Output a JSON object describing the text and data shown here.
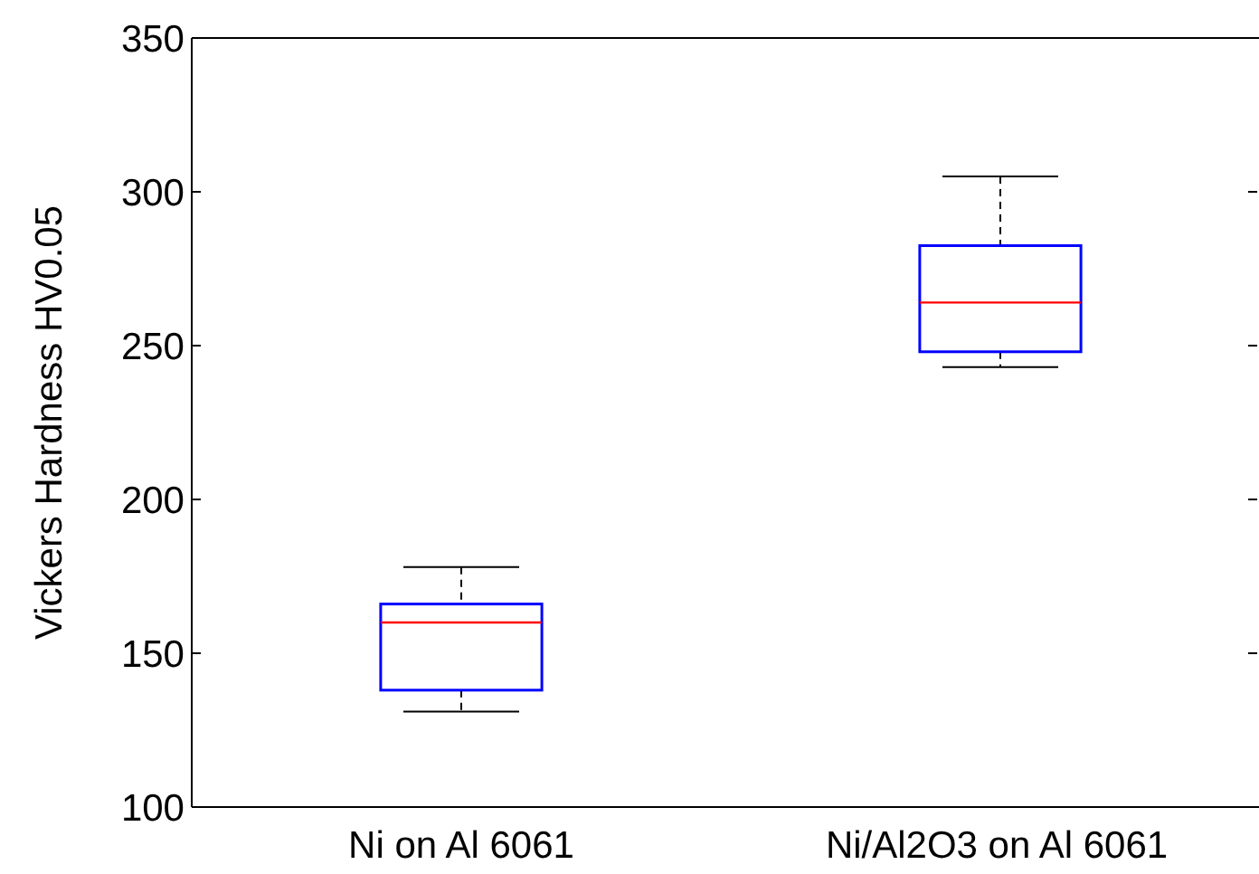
{
  "chart_data": {
    "type": "box",
    "ylabel": "Vickers Hardness HV0.05",
    "categories": [
      "Ni on Al 6061",
      "Ni/Al2O3 on Al 6061"
    ],
    "boxes": [
      {
        "low": 131,
        "q1": 138,
        "median": 160,
        "q3": 166,
        "high": 178
      },
      {
        "low": 243,
        "q1": 248,
        "median": 264,
        "q3": 282.5,
        "high": 305
      }
    ],
    "color": "#0000ff",
    "ylim": [
      100,
      350
    ],
    "yticks": [
      100,
      150,
      200,
      250,
      300,
      350
    ],
    "grid": false
  }
}
